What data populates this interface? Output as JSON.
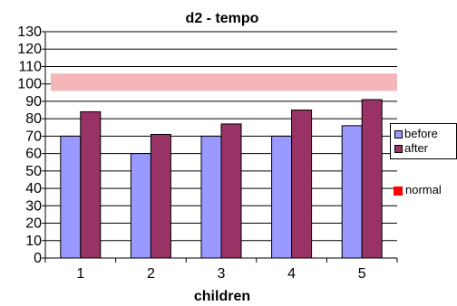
{
  "chart_data": {
    "type": "bar",
    "title": "d2 - tempo",
    "xlabel": "children",
    "ylabel": "",
    "categories": [
      "1",
      "2",
      "3",
      "4",
      "5"
    ],
    "series": [
      {
        "name": "before",
        "values": [
          70,
          60,
          70,
          70,
          76
        ],
        "color": "#9999ff"
      },
      {
        "name": "after",
        "values": [
          84,
          71,
          77,
          85,
          91
        ],
        "color": "#993366"
      }
    ],
    "ylim": [
      0,
      130
    ],
    "yticks": [
      0,
      10,
      20,
      30,
      40,
      50,
      60,
      70,
      80,
      90,
      100,
      110,
      120,
      130
    ],
    "grid": true,
    "legend_position": "right",
    "normal_band": {
      "label": "normal",
      "from": 96,
      "to": 106,
      "color": "#f4b6b6",
      "legend_color": "#ff0000"
    }
  }
}
